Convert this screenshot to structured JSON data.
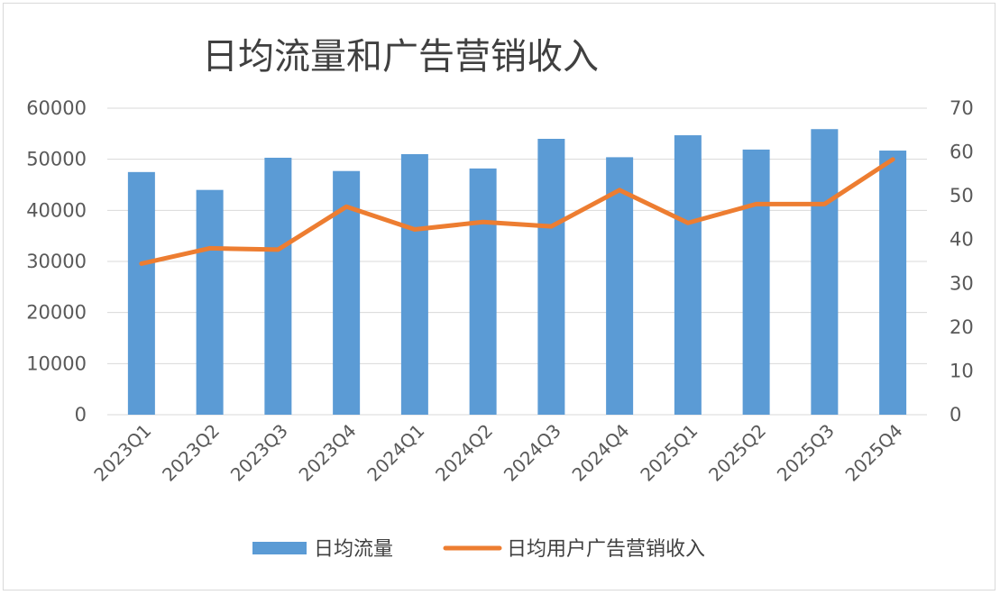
{
  "chart_data": {
    "type": "bar",
    "title": "日均流量和广告营销收入",
    "categories": [
      "2023Q1",
      "2023Q2",
      "2023Q3",
      "2023Q4",
      "2024Q1",
      "2024Q2",
      "2024Q3",
      "2024Q4",
      "2025Q1",
      "2025Q2",
      "2025Q3",
      "2025Q4"
    ],
    "series": [
      {
        "name": "日均流量",
        "type": "bar",
        "axis": "left",
        "color": "#5b9bd5",
        "values": [
          47500,
          44000,
          50300,
          47700,
          51000,
          48200,
          54000,
          50400,
          54700,
          51900,
          55900,
          51700
        ]
      },
      {
        "name": "日均用户广告营销收入",
        "type": "line",
        "axis": "right",
        "color": "#ed7d31",
        "values": [
          34.5,
          38,
          37.7,
          47.5,
          42.3,
          44,
          43,
          51.3,
          43.8,
          48.1,
          48.1,
          58.3
        ]
      }
    ],
    "y_left": {
      "min": 0,
      "max": 60000,
      "ticks": [
        "0",
        "10000",
        "20000",
        "30000",
        "40000",
        "50000",
        "60000"
      ]
    },
    "y_right": {
      "min": 0,
      "max": 70,
      "ticks": [
        "0",
        "10",
        "20",
        "30",
        "40",
        "50",
        "60",
        "70"
      ]
    },
    "grid": true,
    "legend": "bottom"
  }
}
